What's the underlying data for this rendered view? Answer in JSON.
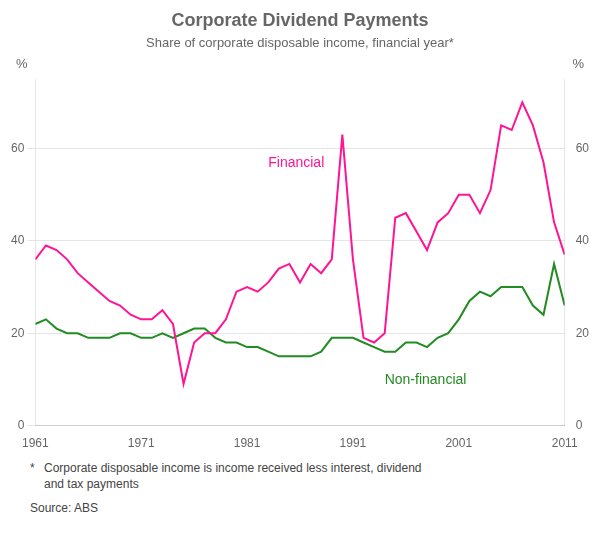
{
  "chart_data": {
    "type": "line",
    "title": "Corporate Dividend Payments",
    "subtitle": "Share of corporate disposable income, financial year*",
    "x": [
      1961,
      1962,
      1963,
      1964,
      1965,
      1966,
      1967,
      1968,
      1969,
      1970,
      1971,
      1972,
      1973,
      1974,
      1975,
      1976,
      1977,
      1978,
      1979,
      1980,
      1981,
      1982,
      1983,
      1984,
      1985,
      1986,
      1987,
      1988,
      1989,
      1990,
      1991,
      1992,
      1993,
      1994,
      1995,
      1996,
      1997,
      1998,
      1999,
      2000,
      2001,
      2002,
      2003,
      2004,
      2005,
      2006,
      2007,
      2008,
      2009,
      2010,
      2011
    ],
    "series": [
      {
        "name": "Financial",
        "color": "#FF1493",
        "values": [
          36,
          39,
          38,
          36,
          33,
          31,
          29,
          27,
          26,
          24,
          23,
          23,
          25,
          22,
          9,
          18,
          20,
          20,
          23,
          29,
          30,
          29,
          31,
          34,
          35,
          31,
          35,
          33,
          36,
          63,
          36,
          19,
          18,
          20,
          45,
          46,
          42,
          38,
          44,
          46,
          50,
          50,
          46,
          51,
          65,
          64,
          70,
          65,
          57,
          44,
          37
        ]
      },
      {
        "name": "Non-financial",
        "color": "#228B22",
        "values": [
          22,
          23,
          21,
          20,
          20,
          19,
          19,
          19,
          20,
          20,
          19,
          19,
          20,
          19,
          20,
          21,
          21,
          19,
          18,
          18,
          17,
          17,
          16,
          15,
          15,
          15,
          15,
          16,
          19,
          19,
          19,
          18,
          17,
          16,
          16,
          18,
          18,
          17,
          19,
          20,
          23,
          27,
          29,
          28,
          30,
          30,
          30,
          26,
          24,
          35,
          26
        ]
      }
    ],
    "xlim": [
      1961,
      2011
    ],
    "xticks": [
      1961,
      1971,
      1981,
      1991,
      2001,
      2011
    ],
    "ylim": [
      0,
      75
    ],
    "yticks": [
      0,
      20,
      40,
      60
    ],
    "y2lim": [
      0,
      75
    ],
    "y2ticks": [
      0,
      20,
      40,
      60
    ],
    "ylabel": "%",
    "y2label": "%",
    "grid": "y",
    "annotations": [
      {
        "text": "Financial",
        "x": 1983,
        "y": 56,
        "color": "#FF1493"
      },
      {
        "text": "Non-financial",
        "x": 1994,
        "y": 9,
        "color": "#228B22"
      }
    ],
    "footnote_star": "*",
    "footnotes": [
      "Corporate disposable income is income received less interest, dividend",
      "and tax payments"
    ],
    "source": "Source: ABS"
  }
}
